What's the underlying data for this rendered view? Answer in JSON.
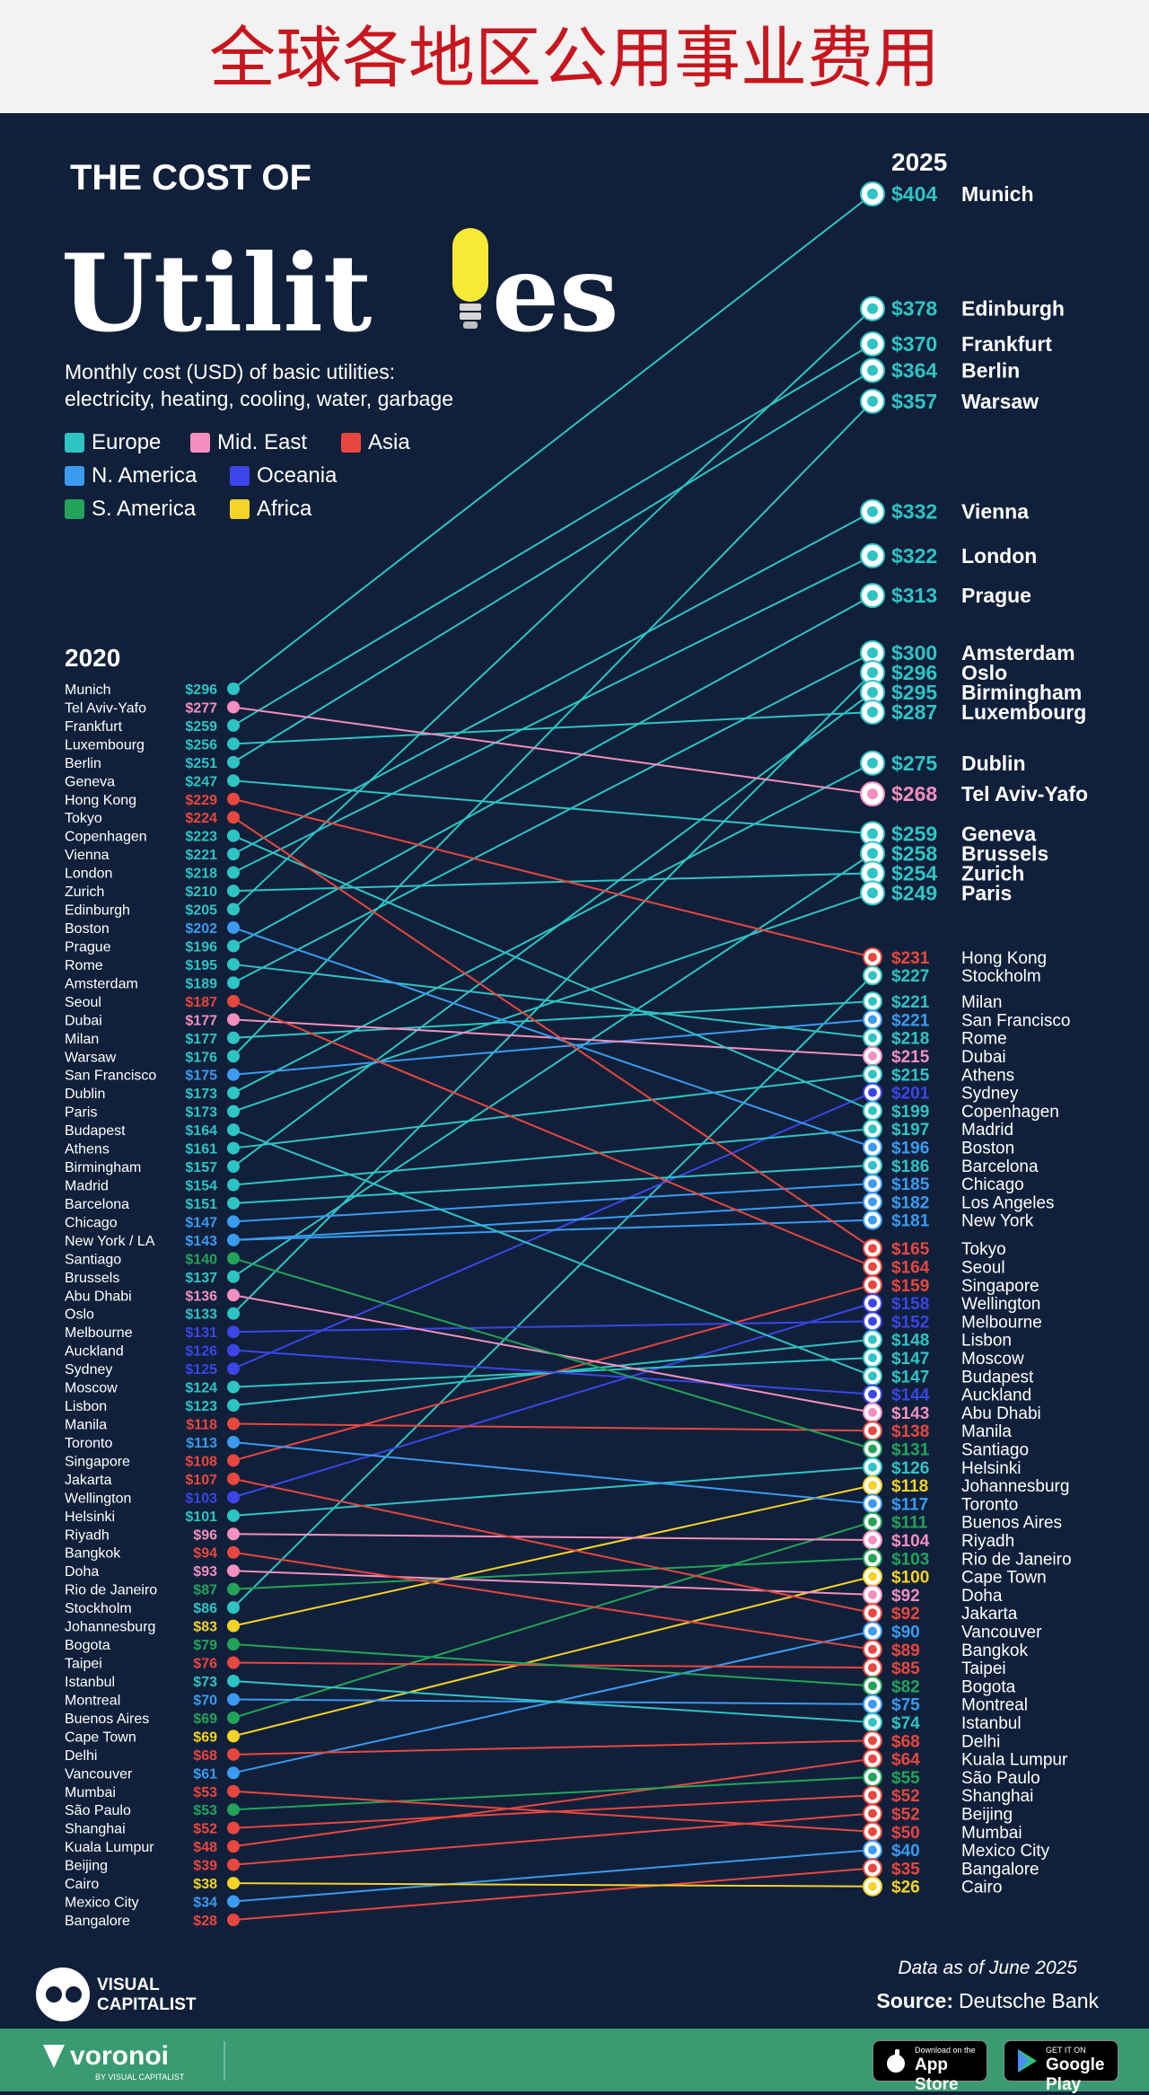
{
  "banner": {
    "title": "全球各地区公用事业费用"
  },
  "header": {
    "line1": "THE COST OF",
    "line2_left": "Utilit",
    "line2_right": "es",
    "subtitle_line1": "Monthly cost (USD) of basic utilities:",
    "subtitle_line2": "electricity, heating, cooling, water, garbage"
  },
  "legend": [
    {
      "label": "Europe",
      "region": "Europe"
    },
    {
      "label": "Mid. East",
      "region": "Mid. East"
    },
    {
      "label": "Asia",
      "region": "Asia"
    },
    {
      "label": "N. America",
      "region": "N. America"
    },
    {
      "label": "Oceania",
      "region": "Oceania"
    },
    {
      "label": "S. America",
      "region": "S. America"
    },
    {
      "label": "Africa",
      "region": "Africa"
    }
  ],
  "colors": {
    "Europe": "#2ec4c4",
    "Mid. East": "#f48fc0",
    "Asia": "#e8473f",
    "N. America": "#3a9bf0",
    "Oceania": "#3b45e8",
    "S. America": "#23a35a",
    "Africa": "#f5d327",
    "background": "#10203a"
  },
  "chart_data": {
    "type": "slope",
    "title": "THE COST OF Utilities",
    "subtitle": "Monthly cost (USD) of basic utilities: electricity, heating, cooling, water, garbage",
    "left_year": "2020",
    "right_year": "2025",
    "series": [
      {
        "city": "Munich",
        "region": "Europe",
        "v2020": 296,
        "v2025": 404
      },
      {
        "city": "Edinburgh",
        "region": "Europe",
        "v2020": 205,
        "v2025": 378
      },
      {
        "city": "Frankfurt",
        "region": "Europe",
        "v2020": 259,
        "v2025": 370
      },
      {
        "city": "Berlin",
        "region": "Europe",
        "v2020": 251,
        "v2025": 364
      },
      {
        "city": "Warsaw",
        "region": "Europe",
        "v2020": 176,
        "v2025": 357
      },
      {
        "city": "Vienna",
        "region": "Europe",
        "v2020": 221,
        "v2025": 332
      },
      {
        "city": "London",
        "region": "Europe",
        "v2020": 218,
        "v2025": 322
      },
      {
        "city": "Prague",
        "region": "Europe",
        "v2020": 196,
        "v2025": 313
      },
      {
        "city": "Amsterdam",
        "region": "Europe",
        "v2020": 189,
        "v2025": 300
      },
      {
        "city": "Oslo",
        "region": "Europe",
        "v2020": 133,
        "v2025": 296
      },
      {
        "city": "Birmingham",
        "region": "Europe",
        "v2020": 157,
        "v2025": 295
      },
      {
        "city": "Luxembourg",
        "region": "Europe",
        "v2020": 256,
        "v2025": 287
      },
      {
        "city": "Dublin",
        "region": "Europe",
        "v2020": 173,
        "v2025": 275
      },
      {
        "city": "Tel Aviv-Yafo",
        "region": "Mid. East",
        "v2020": 277,
        "v2025": 268
      },
      {
        "city": "Geneva",
        "region": "Europe",
        "v2020": 247,
        "v2025": 259
      },
      {
        "city": "Brussels",
        "region": "Europe",
        "v2020": 137,
        "v2025": 258
      },
      {
        "city": "Zurich",
        "region": "Europe",
        "v2020": 210,
        "v2025": 254
      },
      {
        "city": "Paris",
        "region": "Europe",
        "v2020": 173,
        "v2025": 249
      },
      {
        "city": "Hong Kong",
        "region": "Asia",
        "v2020": 229,
        "v2025": 231
      },
      {
        "city": "Stockholm",
        "region": "Europe",
        "v2020": 86,
        "v2025": 227
      },
      {
        "city": "Milan",
        "region": "Europe",
        "v2020": 177,
        "v2025": 221
      },
      {
        "city": "San Francisco",
        "region": "N. America",
        "v2020": 175,
        "v2025": 221
      },
      {
        "city": "Rome",
        "region": "Europe",
        "v2020": 195,
        "v2025": 218
      },
      {
        "city": "Dubai",
        "region": "Mid. East",
        "v2020": 177,
        "v2025": 215
      },
      {
        "city": "Athens",
        "region": "Europe",
        "v2020": 161,
        "v2025": 215
      },
      {
        "city": "Sydney",
        "region": "Oceania",
        "v2020": 125,
        "v2025": 201
      },
      {
        "city": "Copenhagen",
        "region": "Europe",
        "v2020": 223,
        "v2025": 199
      },
      {
        "city": "Madrid",
        "region": "Europe",
        "v2020": 154,
        "v2025": 197
      },
      {
        "city": "Boston",
        "region": "N. America",
        "v2020": 202,
        "v2025": 196
      },
      {
        "city": "Barcelona",
        "region": "Europe",
        "v2020": 151,
        "v2025": 186
      },
      {
        "city": "Chicago",
        "region": "N. America",
        "v2020": 147,
        "v2025": 185
      },
      {
        "city": "Los Angeles",
        "region": "N. America",
        "v2020": 143,
        "v2025": 182
      },
      {
        "city": "New York",
        "region": "N. America",
        "v2020": 143,
        "v2025": 181
      },
      {
        "city": "Tokyo",
        "region": "Asia",
        "v2020": 224,
        "v2025": 165
      },
      {
        "city": "Seoul",
        "region": "Asia",
        "v2020": 187,
        "v2025": 164
      },
      {
        "city": "Singapore",
        "region": "Asia",
        "v2020": 108,
        "v2025": 159
      },
      {
        "city": "Wellington",
        "region": "Oceania",
        "v2020": 103,
        "v2025": 158
      },
      {
        "city": "Melbourne",
        "region": "Oceania",
        "v2020": 131,
        "v2025": 152
      },
      {
        "city": "Lisbon",
        "region": "Europe",
        "v2020": 123,
        "v2025": 148
      },
      {
        "city": "Moscow",
        "region": "Europe",
        "v2020": 124,
        "v2025": 147
      },
      {
        "city": "Budapest",
        "region": "Europe",
        "v2020": 164,
        "v2025": 147
      },
      {
        "city": "Auckland",
        "region": "Oceania",
        "v2020": 126,
        "v2025": 144
      },
      {
        "city": "Abu Dhabi",
        "region": "Mid. East",
        "v2020": 136,
        "v2025": 143
      },
      {
        "city": "Manila",
        "region": "Asia",
        "v2020": 118,
        "v2025": 138
      },
      {
        "city": "Santiago",
        "region": "S. America",
        "v2020": 140,
        "v2025": 131
      },
      {
        "city": "Helsinki",
        "region": "Europe",
        "v2020": 101,
        "v2025": 126
      },
      {
        "city": "Johannesburg",
        "region": "Africa",
        "v2020": 83,
        "v2025": 118
      },
      {
        "city": "Toronto",
        "region": "N. America",
        "v2020": 113,
        "v2025": 117
      },
      {
        "city": "Buenos Aires",
        "region": "S. America",
        "v2020": 69,
        "v2025": 111
      },
      {
        "city": "Riyadh",
        "region": "Mid. East",
        "v2020": 96,
        "v2025": 104
      },
      {
        "city": "Rio de Janeiro",
        "region": "S. America",
        "v2020": 87,
        "v2025": 103
      },
      {
        "city": "Cape Town",
        "region": "Africa",
        "v2020": 69,
        "v2025": 100
      },
      {
        "city": "Doha",
        "region": "Mid. East",
        "v2020": 93,
        "v2025": 92
      },
      {
        "city": "Jakarta",
        "region": "Asia",
        "v2020": 107,
        "v2025": 92
      },
      {
        "city": "Vancouver",
        "region": "N. America",
        "v2020": 61,
        "v2025": 90
      },
      {
        "city": "Bangkok",
        "region": "Asia",
        "v2020": 94,
        "v2025": 89
      },
      {
        "city": "Taipei",
        "region": "Asia",
        "v2020": 76,
        "v2025": 85
      },
      {
        "city": "Bogota",
        "region": "S. America",
        "v2020": 79,
        "v2025": 82
      },
      {
        "city": "Montreal",
        "region": "N. America",
        "v2020": 70,
        "v2025": 75
      },
      {
        "city": "Istanbul",
        "region": "Europe",
        "v2020": 73,
        "v2025": 74
      },
      {
        "city": "Delhi",
        "region": "Asia",
        "v2020": 68,
        "v2025": 68
      },
      {
        "city": "Kuala Lumpur",
        "region": "Asia",
        "v2020": 48,
        "v2025": 64
      },
      {
        "city": "São Paulo",
        "region": "S. America",
        "v2020": 53,
        "v2025": 55
      },
      {
        "city": "Shanghai",
        "region": "Asia",
        "v2020": 52,
        "v2025": 52
      },
      {
        "city": "Beijing",
        "region": "Asia",
        "v2020": 39,
        "v2025": 52
      },
      {
        "city": "Mumbai",
        "region": "Asia",
        "v2020": 53,
        "v2025": 50
      },
      {
        "city": "Mexico City",
        "region": "N. America",
        "v2020": 34,
        "v2025": 40
      },
      {
        "city": "Bangalore",
        "region": "Asia",
        "v2020": 28,
        "v2025": 35
      },
      {
        "city": "Cairo",
        "region": "Africa",
        "v2020": 38,
        "v2025": 26
      }
    ],
    "left_axis_order": [
      "Munich",
      "Tel Aviv-Yafo",
      "Frankfurt",
      "Luxembourg",
      "Berlin",
      "Geneva",
      "Hong Kong",
      "Tokyo",
      "Copenhagen",
      "Vienna",
      "London",
      "Zurich",
      "Edinburgh",
      "Boston",
      "Prague",
      "Rome",
      "Amsterdam",
      "Seoul",
      "Dubai",
      "Milan",
      "Warsaw",
      "San Francisco",
      "Dublin",
      "Paris",
      "Budapest",
      "Athens",
      "Birmingham",
      "Madrid",
      "Barcelona",
      "Chicago",
      "New York / LA",
      "Santiago",
      "Brussels",
      "Abu Dhabi",
      "Oslo",
      "Melbourne",
      "Auckland",
      "Sydney",
      "Moscow",
      "Lisbon",
      "Manila",
      "Toronto",
      "Singapore",
      "Jakarta",
      "Wellington",
      "Helsinki",
      "Riyadh",
      "Bangkok",
      "Doha",
      "Rio de Janeiro",
      "Stockholm",
      "Johannesburg",
      "Bogota",
      "Taipei",
      "Istanbul",
      "Montreal",
      "Buenos Aires",
      "Cape Town",
      "Delhi",
      "Vancouver",
      "Mumbai",
      "São Paulo",
      "Shanghai",
      "Kuala Lumpur",
      "Beijing",
      "Cairo",
      "Mexico City",
      "Bangalore"
    ],
    "left_labels": [
      {
        "city": "Munich",
        "value": "$296",
        "region": "Europe"
      },
      {
        "city": "Tel Aviv-Yafo",
        "value": "$277",
        "region": "Mid. East"
      },
      {
        "city": "Frankfurt",
        "value": "$259",
        "region": "Europe"
      },
      {
        "city": "Luxembourg",
        "value": "$256",
        "region": "Europe"
      },
      {
        "city": "Berlin",
        "value": "$251",
        "region": "Europe"
      },
      {
        "city": "Geneva",
        "value": "$247",
        "region": "Europe"
      },
      {
        "city": "Hong Kong",
        "value": "$229",
        "region": "Asia"
      },
      {
        "city": "Tokyo",
        "value": "$224",
        "region": "Asia"
      },
      {
        "city": "Copenhagen",
        "value": "$223",
        "region": "Europe"
      },
      {
        "city": "Vienna",
        "value": "$221",
        "region": "Europe"
      },
      {
        "city": "London",
        "value": "$218",
        "region": "Europe"
      },
      {
        "city": "Zurich",
        "value": "$210",
        "region": "Europe"
      },
      {
        "city": "Edinburgh",
        "value": "$205",
        "region": "Europe"
      },
      {
        "city": "Boston",
        "value": "$202",
        "region": "N. America"
      },
      {
        "city": "Prague",
        "value": "$196",
        "region": "Europe"
      },
      {
        "city": "Rome",
        "value": "$195",
        "region": "Europe"
      },
      {
        "city": "Amsterdam",
        "value": "$189",
        "region": "Europe"
      },
      {
        "city": "Seoul",
        "value": "$187",
        "region": "Asia"
      },
      {
        "city": "Dubai",
        "value": "$177",
        "region": "Mid. East"
      },
      {
        "city": "Milan",
        "value": "$177",
        "region": "Europe"
      },
      {
        "city": "Warsaw",
        "value": "$176",
        "region": "Europe"
      },
      {
        "city": "San Francisco",
        "value": "$175",
        "region": "N. America"
      },
      {
        "city": "Dublin",
        "value": "$173",
        "region": "Europe"
      },
      {
        "city": "Paris",
        "value": "$173",
        "region": "Europe"
      },
      {
        "city": "Budapest",
        "value": "$164",
        "region": "Europe"
      },
      {
        "city": "Athens",
        "value": "$161",
        "region": "Europe"
      },
      {
        "city": "Birmingham",
        "value": "$157",
        "region": "Europe"
      },
      {
        "city": "Madrid",
        "value": "$154",
        "region": "Europe"
      },
      {
        "city": "Barcelona",
        "value": "$151",
        "region": "Europe"
      },
      {
        "city": "Chicago",
        "value": "$147",
        "region": "N. America"
      },
      {
        "city": "New York / LA",
        "value": "$143",
        "region": "N. America"
      },
      {
        "city": "Santiago",
        "value": "$140",
        "region": "S. America"
      },
      {
        "city": "Brussels",
        "value": "$137",
        "region": "Europe"
      },
      {
        "city": "Abu Dhabi",
        "value": "$136",
        "region": "Mid. East"
      },
      {
        "city": "Oslo",
        "value": "$133",
        "region": "Europe"
      },
      {
        "city": "Melbourne",
        "value": "$131",
        "region": "Oceania"
      },
      {
        "city": "Auckland",
        "value": "$126",
        "region": "Oceania"
      },
      {
        "city": "Sydney",
        "value": "$125",
        "region": "Oceania"
      },
      {
        "city": "Moscow",
        "value": "$124",
        "region": "Europe"
      },
      {
        "city": "Lisbon",
        "value": "$123",
        "region": "Europe"
      },
      {
        "city": "Manila",
        "value": "$118",
        "region": "Asia"
      },
      {
        "city": "Toronto",
        "value": "$113",
        "region": "N. America"
      },
      {
        "city": "Singapore",
        "value": "$108",
        "region": "Asia"
      },
      {
        "city": "Jakarta",
        "value": "$107",
        "region": "Asia"
      },
      {
        "city": "Wellington",
        "value": "$103",
        "region": "Oceania"
      },
      {
        "city": "Helsinki",
        "value": "$101",
        "region": "Europe"
      },
      {
        "city": "Riyadh",
        "value": "$96",
        "region": "Mid. East"
      },
      {
        "city": "Bangkok",
        "value": "$94",
        "region": "Asia"
      },
      {
        "city": "Doha",
        "value": "$93",
        "region": "Mid. East"
      },
      {
        "city": "Rio de Janeiro",
        "value": "$87",
        "region": "S. America"
      },
      {
        "city": "Stockholm",
        "value": "$86",
        "region": "Europe"
      },
      {
        "city": "Johannesburg",
        "value": "$83",
        "region": "Africa"
      },
      {
        "city": "Bogota",
        "value": "$79",
        "region": "S. America"
      },
      {
        "city": "Taipei",
        "value": "$76",
        "region": "Asia"
      },
      {
        "city": "Istanbul",
        "value": "$73",
        "region": "Europe"
      },
      {
        "city": "Montreal",
        "value": "$70",
        "region": "N. America"
      },
      {
        "city": "Buenos Aires",
        "value": "$69",
        "region": "S. America"
      },
      {
        "city": "Cape Town",
        "value": "$69",
        "region": "Africa"
      },
      {
        "city": "Delhi",
        "value": "$68",
        "region": "Asia"
      },
      {
        "city": "Vancouver",
        "value": "$61",
        "region": "N. America"
      },
      {
        "city": "Mumbai",
        "value": "$53",
        "region": "Asia"
      },
      {
        "city": "São Paulo",
        "value": "$53",
        "region": "S. America"
      },
      {
        "city": "Shanghai",
        "value": "$52",
        "region": "Asia"
      },
      {
        "city": "Kuala Lumpur",
        "value": "$48",
        "region": "Asia"
      },
      {
        "city": "Beijing",
        "value": "$39",
        "region": "Asia"
      },
      {
        "city": "Cairo",
        "value": "$38",
        "region": "Africa"
      },
      {
        "city": "Mexico City",
        "value": "$34",
        "region": "N. America"
      },
      {
        "city": "Bangalore",
        "value": "$28",
        "region": "Asia"
      }
    ]
  },
  "note": {
    "date": "Data as of June 2025",
    "source_label": "Source:",
    "source_value": "Deutsche Bank"
  },
  "branding": {
    "vc_line1": "VISUAL",
    "vc_line2": "CAPITALIST",
    "voronoi": "voronoi",
    "voronoi_sub": "BY VISUAL CAPITALIST"
  },
  "footer": {
    "appstore_small": "Download on the",
    "appstore_big": "App Store",
    "googleplay_small": "GET IT ON",
    "googleplay_big": "Google Play"
  }
}
